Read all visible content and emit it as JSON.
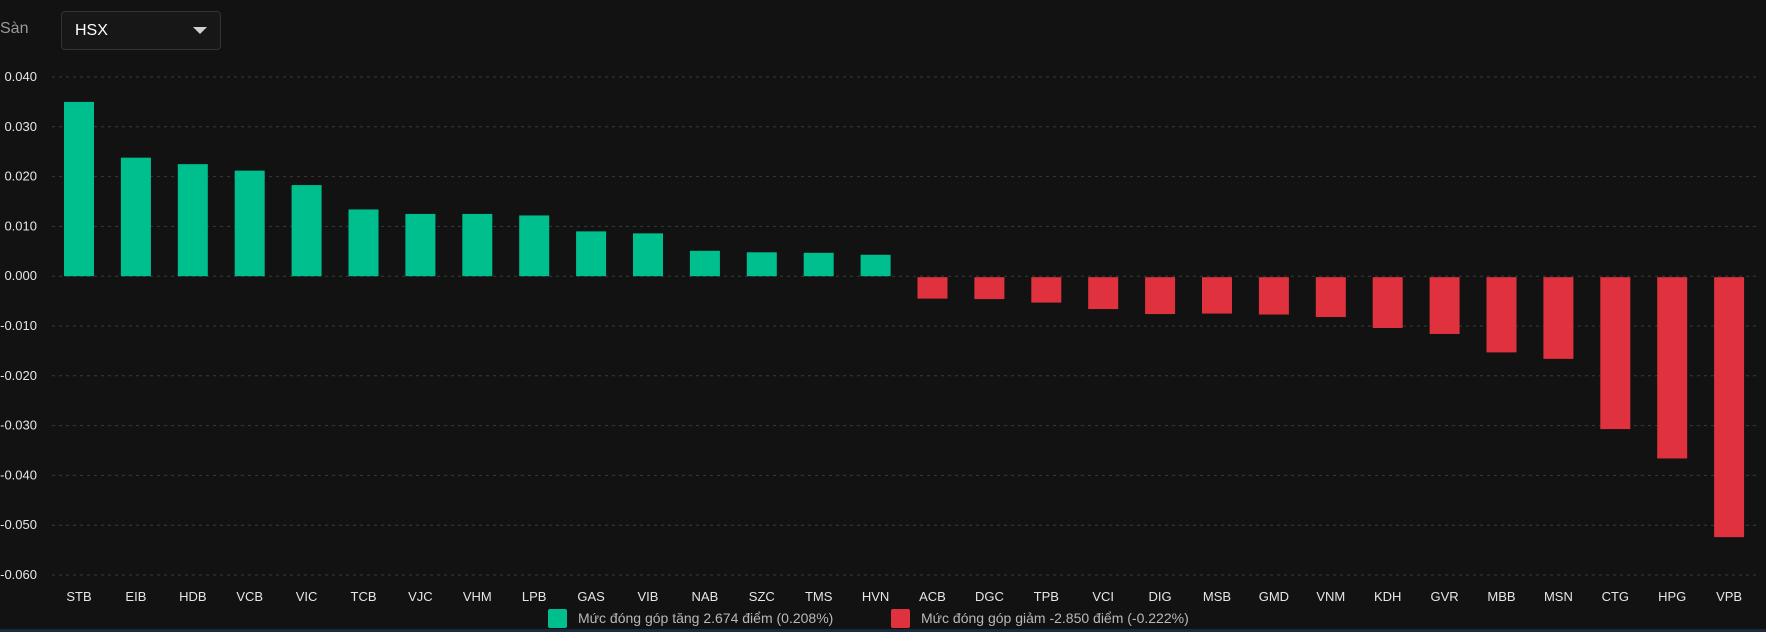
{
  "filter": {
    "label": "Sàn",
    "value": "HSX"
  },
  "colors": {
    "positive": "#00bf8f",
    "negative": "#e0323e",
    "grid": "#3a3a3a",
    "text": "#e6e6e6",
    "background": "#121212"
  },
  "chart_data": {
    "type": "bar",
    "categories": [
      "STB",
      "EIB",
      "HDB",
      "VCB",
      "VIC",
      "TCB",
      "VJC",
      "VHM",
      "LPB",
      "GAS",
      "VIB",
      "NAB",
      "SZC",
      "TMS",
      "HVN",
      "ACB",
      "DGC",
      "TPB",
      "VCI",
      "DIG",
      "MSB",
      "GMD",
      "VNM",
      "KDH",
      "GVR",
      "MBB",
      "MSN",
      "CTG",
      "HPG",
      "VPB"
    ],
    "values": [
      0.035,
      0.0238,
      0.0225,
      0.0212,
      0.0183,
      0.0134,
      0.0125,
      0.0125,
      0.0122,
      0.009,
      0.0086,
      0.0051,
      0.0048,
      0.0047,
      0.0043,
      -0.0043,
      -0.0044,
      -0.0051,
      -0.0064,
      -0.0074,
      -0.0073,
      -0.0075,
      -0.008,
      -0.0102,
      -0.0114,
      -0.0151,
      -0.0164,
      -0.0305,
      -0.0364,
      -0.0522
    ],
    "yticks": [
      "0.040",
      "0.030",
      "0.020",
      "0.010",
      "0.000",
      "-0.010",
      "-0.020",
      "-0.030",
      "-0.040",
      "-0.050",
      "-0.060"
    ],
    "ylim": [
      -0.06,
      0.04
    ],
    "grid": true,
    "legend": [
      {
        "label": "Mức đóng góp tăng 2.674 điểm (0.208%)",
        "color": "#00bf8f"
      },
      {
        "label": "Mức đóng góp giảm -2.850 điểm (-0.222%)",
        "color": "#e0323e"
      }
    ],
    "legend_position": "bottom-center"
  }
}
